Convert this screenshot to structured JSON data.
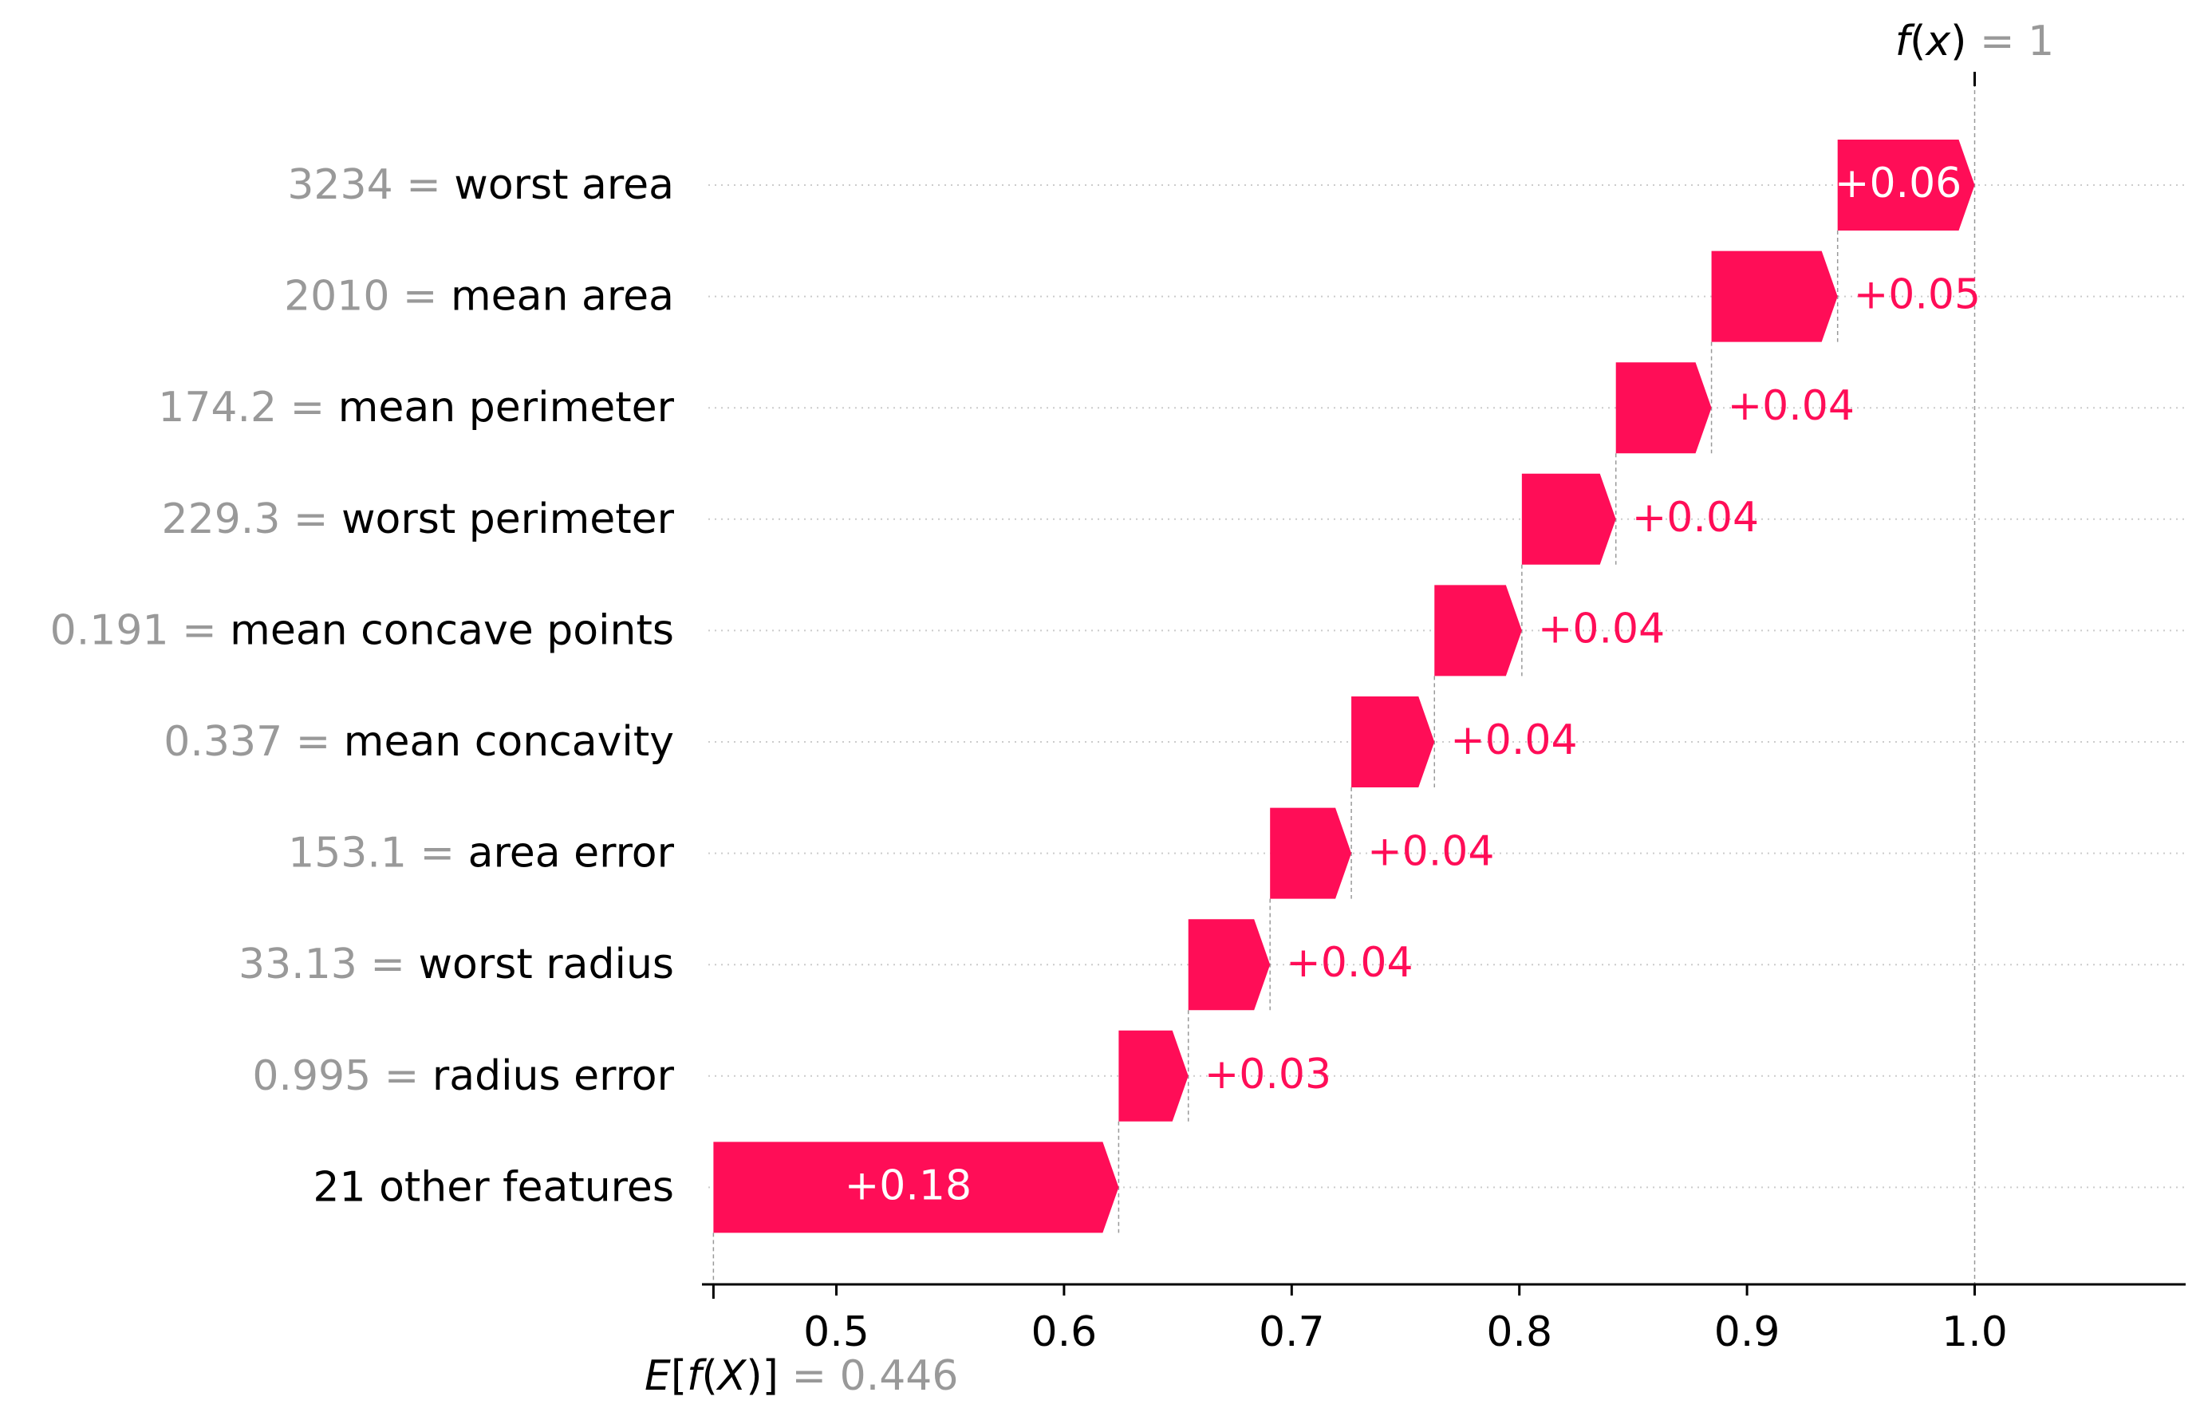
{
  "chart_data": {
    "type": "waterfall",
    "base": {
      "label": "E[f(X)]",
      "eq": "=",
      "value_text": "0.446",
      "value": 0.446
    },
    "output": {
      "label": "f(x)",
      "eq": "=",
      "value_text": "1",
      "value": 1.0
    },
    "features": [
      {
        "value_text": "3234",
        "name": "worst area",
        "contribution": 0.06,
        "label": "+0.06"
      },
      {
        "value_text": "2010",
        "name": "mean area",
        "contribution": 0.05,
        "label": "+0.05"
      },
      {
        "value_text": "174.2",
        "name": "mean perimeter",
        "contribution": 0.04,
        "label": "+0.04"
      },
      {
        "value_text": "229.3",
        "name": "worst perimeter",
        "contribution": 0.04,
        "label": "+0.04"
      },
      {
        "value_text": "0.191",
        "name": "mean concave points",
        "contribution": 0.04,
        "label": "+0.04"
      },
      {
        "value_text": "0.337",
        "name": "mean concavity",
        "contribution": 0.04,
        "label": "+0.04"
      },
      {
        "value_text": "153.1",
        "name": "area error",
        "contribution": 0.04,
        "label": "+0.04"
      },
      {
        "value_text": "33.13",
        "name": "worst radius",
        "contribution": 0.04,
        "label": "+0.04"
      },
      {
        "value_text": "0.995",
        "name": "radius error",
        "contribution": 0.03,
        "label": "+0.03"
      },
      {
        "value_text": "",
        "name": "21 other features",
        "contribution": 0.18,
        "label": "+0.18"
      }
    ],
    "segments": [
      {
        "start": 0.9398,
        "end": 1.0
      },
      {
        "start": 0.8844,
        "end": 0.9398
      },
      {
        "start": 0.8424,
        "end": 0.8844
      },
      {
        "start": 0.8011,
        "end": 0.8424
      },
      {
        "start": 0.7627,
        "end": 0.8011
      },
      {
        "start": 0.7262,
        "end": 0.7627
      },
      {
        "start": 0.6905,
        "end": 0.7262
      },
      {
        "start": 0.6546,
        "end": 0.6905
      },
      {
        "start": 0.624,
        "end": 0.6546
      },
      {
        "start": 0.446,
        "end": 0.624
      }
    ],
    "xticks": [
      "0.5",
      "0.6",
      "0.7",
      "0.8",
      "0.9",
      "1.0"
    ],
    "xlim": [
      0.443,
      1.09
    ],
    "colors": {
      "positive": "#ff0d57",
      "muted": "#999999",
      "text": "#000000",
      "grid": "#cccccc"
    }
  }
}
